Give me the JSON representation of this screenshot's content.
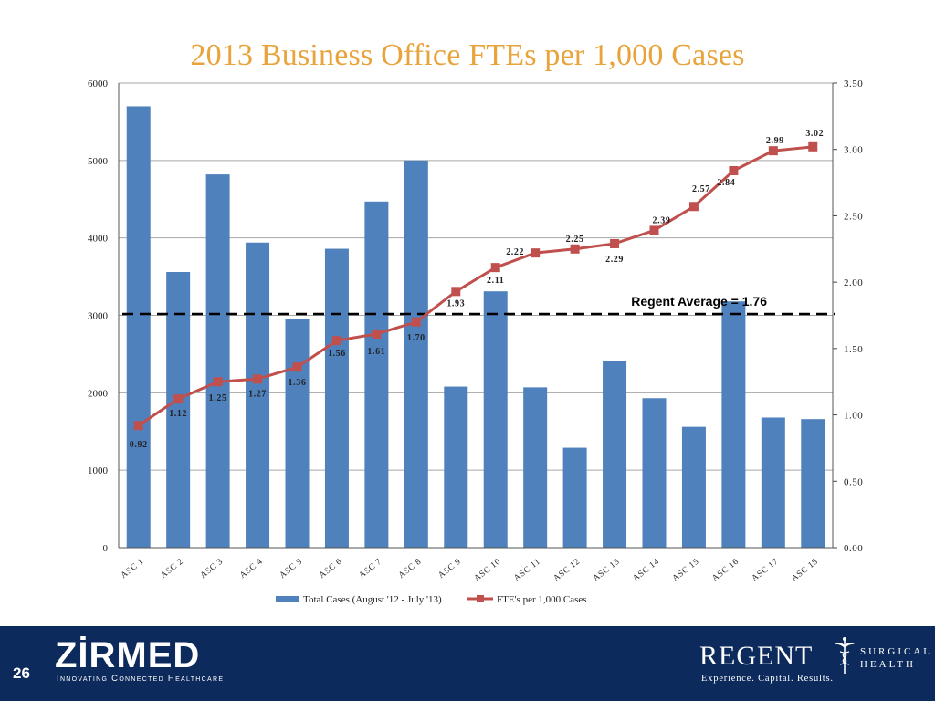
{
  "slide": {
    "title": "2013 Business Office FTEs per 1,000 Cases",
    "page_number": "26"
  },
  "chart_data": {
    "type": "bar",
    "title": "2013 Business Office FTEs per 1,000 Cases",
    "categories": [
      "ASC 1",
      "ASC 2",
      "ASC 3",
      "ASC 4",
      "ASC 5",
      "ASC 6",
      "ASC 7",
      "ASC 8",
      "ASC 9",
      "ASC 10",
      "ASC 11",
      "ASC 12",
      "ASC 13",
      "ASC 14",
      "ASC 15",
      "ASC 16",
      "ASC 17",
      "ASC 18"
    ],
    "series": [
      {
        "name": "Total Cases (August '12 - July '13)",
        "type": "bar",
        "axis": "left",
        "color": "#4f81bd",
        "values": [
          5700,
          3560,
          4820,
          3940,
          2950,
          3860,
          4470,
          5000,
          2080,
          3310,
          2070,
          1290,
          2410,
          1930,
          1560,
          3180,
          1680,
          1660
        ]
      },
      {
        "name": "FTE's per 1,000 Cases",
        "type": "line",
        "axis": "right",
        "color": "#c0504d",
        "values": [
          0.92,
          1.12,
          1.25,
          1.27,
          1.36,
          1.56,
          1.61,
          1.7,
          1.93,
          2.11,
          2.22,
          2.25,
          2.29,
          2.39,
          2.57,
          2.84,
          2.99,
          3.02
        ],
        "labels": [
          "0.92",
          "1.12",
          "1.25",
          "1.27",
          "1.36",
          "1.56",
          "1.61",
          "1.70",
          "1.93",
          "2.11",
          "2.22",
          "2.25",
          "2.29",
          "2.39",
          "2.57",
          "2.84",
          "2.99",
          "3.02"
        ]
      }
    ],
    "y_left": {
      "range": [
        0,
        6000
      ],
      "ticks": [
        "0",
        "1000",
        "2000",
        "3000",
        "4000",
        "5000",
        "6000"
      ]
    },
    "y_right": {
      "range": [
        0,
        3.5
      ],
      "ticks": [
        "0.00",
        "0.50",
        "1.00",
        "1.50",
        "2.00",
        "2.50",
        "3.00",
        "3.50"
      ]
    },
    "reference_line": {
      "label": "Regent Average = 1.76",
      "value": 1.76,
      "axis": "right",
      "style": "dashed",
      "color": "#000000"
    },
    "grid": true,
    "legend_position": "bottom"
  },
  "footer": {
    "zirmed_name": "ZİRMED",
    "zirmed_tagline": "Innovating Connected Healthcare",
    "regent_name": "REGENT",
    "regent_sub1": "SURGICAL",
    "regent_sub2": "HEALTH",
    "regent_tagline": "Experience. Capital. Results."
  }
}
